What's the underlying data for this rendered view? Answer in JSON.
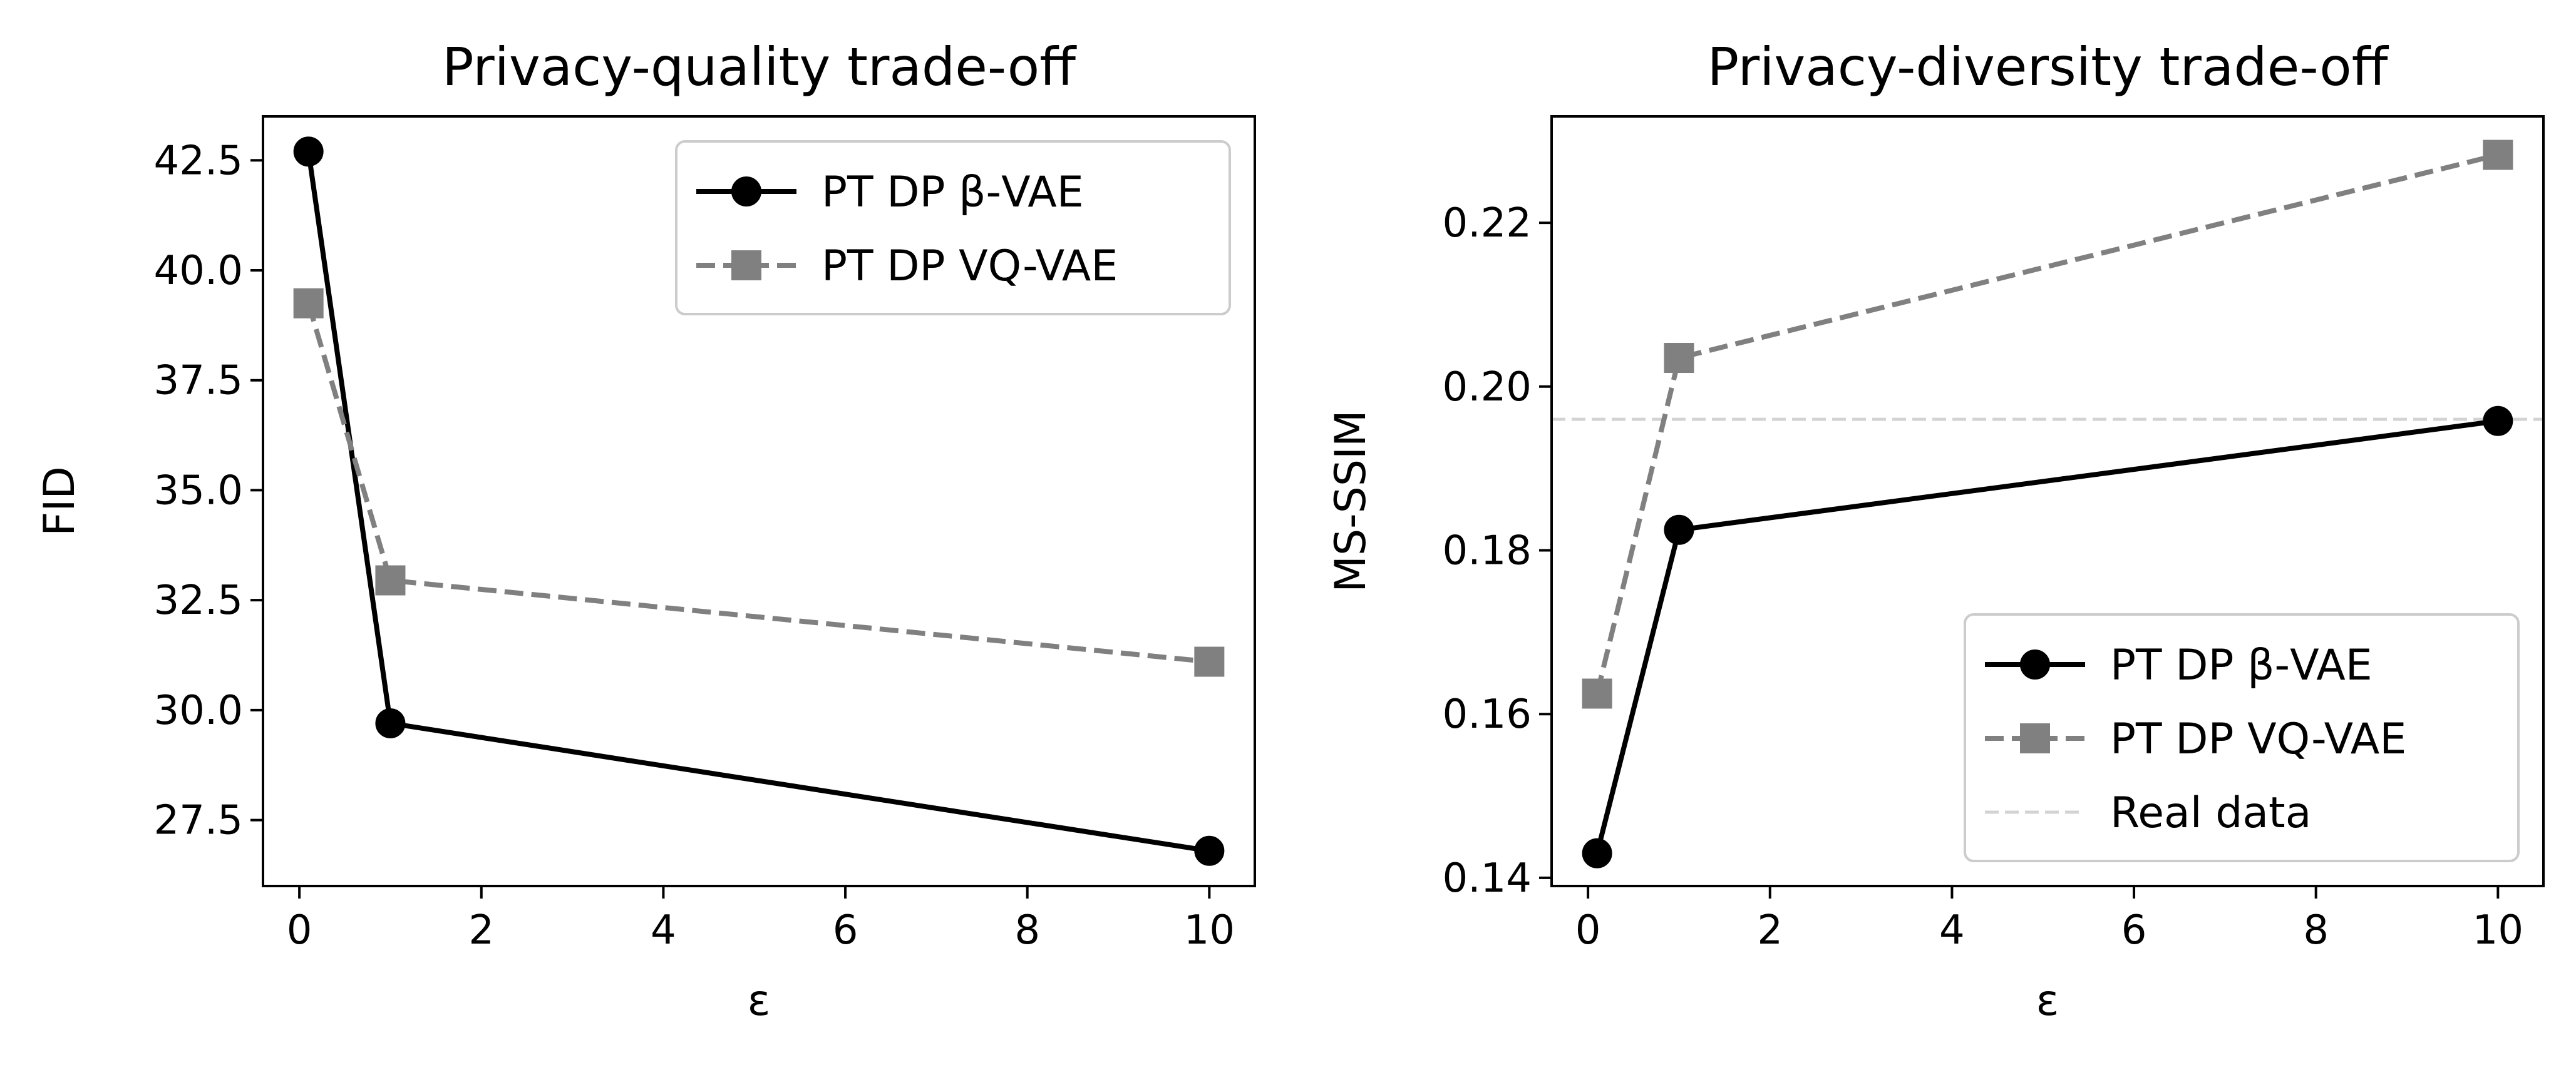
{
  "chart_data": [
    {
      "type": "line",
      "title": "Privacy-quality trade-off",
      "xlabel": "ε",
      "ylabel": "FID",
      "xlim": [
        -0.4,
        10.5
      ],
      "ylim": [
        26.0,
        43.5
      ],
      "xticks": [
        0,
        2,
        4,
        6,
        8,
        10
      ],
      "xtick_labels": [
        "0",
        "2",
        "4",
        "6",
        "8",
        "10"
      ],
      "yticks": [
        27.5,
        30.0,
        32.5,
        35.0,
        37.5,
        40.0,
        42.5
      ],
      "ytick_labels": [
        "27.5",
        "30.0",
        "32.5",
        "35.0",
        "37.5",
        "40.0",
        "42.5"
      ],
      "legend_position": "top-right",
      "series": [
        {
          "name": "PT DP β-VAE",
          "x": [
            0.1,
            1,
            10
          ],
          "y": [
            42.7,
            29.7,
            26.8
          ],
          "color": "#000000",
          "marker": "circle",
          "linestyle": "solid"
        },
        {
          "name": "PT DP VQ-VAE",
          "x": [
            0.1,
            1,
            10
          ],
          "y": [
            39.25,
            32.95,
            31.1
          ],
          "color": "#808080",
          "marker": "square",
          "linestyle": "dashed"
        }
      ],
      "reference_lines": []
    },
    {
      "type": "line",
      "title": "Privacy-diversity trade-off",
      "xlabel": "ε",
      "ylabel": "MS-SSIM",
      "xlim": [
        -0.4,
        10.5
      ],
      "ylim": [
        0.139,
        0.233
      ],
      "xticks": [
        0,
        2,
        4,
        6,
        8,
        10
      ],
      "xtick_labels": [
        "0",
        "2",
        "4",
        "6",
        "8",
        "10"
      ],
      "yticks": [
        0.14,
        0.16,
        0.18,
        0.2,
        0.22
      ],
      "ytick_labels": [
        "0.14",
        "0.16",
        "0.18",
        "0.20",
        "0.22"
      ],
      "legend_position": "bottom-right",
      "series": [
        {
          "name": "PT DP β-VAE",
          "x": [
            0.1,
            1,
            10
          ],
          "y": [
            0.143,
            0.1825,
            0.1958
          ],
          "color": "#000000",
          "marker": "circle",
          "linestyle": "solid"
        },
        {
          "name": "PT DP VQ-VAE",
          "x": [
            0.1,
            1,
            10
          ],
          "y": [
            0.1625,
            0.2035,
            0.2283
          ],
          "color": "#808080",
          "marker": "square",
          "linestyle": "dashed"
        }
      ],
      "reference_lines": [
        {
          "name": "Real data",
          "y": 0.196,
          "color": "#d3d3d3",
          "linestyle": "dashed"
        }
      ]
    }
  ]
}
